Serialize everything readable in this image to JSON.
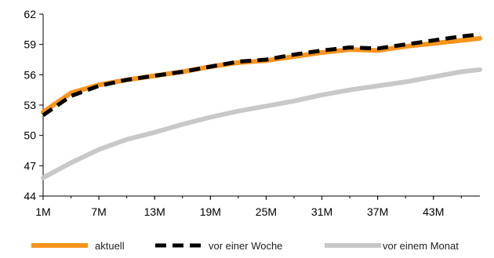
{
  "chart_data": {
    "type": "line",
    "title": "",
    "xlabel": "",
    "ylabel": "",
    "x_ticks": [
      "1M",
      "7M",
      "13M",
      "19M",
      "25M",
      "31M",
      "37M",
      "43M"
    ],
    "x": [
      1,
      4,
      7,
      10,
      13,
      16,
      19,
      22,
      25,
      28,
      31,
      34,
      37,
      40,
      43,
      46,
      48
    ],
    "xlim": [
      1,
      48
    ],
    "y_ticks": [
      44,
      47,
      50,
      53,
      56,
      59,
      62
    ],
    "ylim": [
      44,
      62
    ],
    "grid": false,
    "legend_position": "bottom",
    "series": [
      {
        "name": "aktuell",
        "color": "#f7941d",
        "style": "solid",
        "values": [
          52.3,
          54.2,
          55.0,
          55.5,
          55.9,
          56.3,
          56.8,
          57.2,
          57.4,
          57.8,
          58.2,
          58.5,
          58.4,
          58.8,
          59.1,
          59.4,
          59.6
        ]
      },
      {
        "name": "vor einer Woche",
        "color": "#000000",
        "style": "dashed",
        "values": [
          52.0,
          53.9,
          54.9,
          55.5,
          55.9,
          56.3,
          56.8,
          57.3,
          57.5,
          58.0,
          58.4,
          58.7,
          58.6,
          59.0,
          59.4,
          59.8,
          60.0
        ]
      },
      {
        "name": "vor einem Monat",
        "color": "#c8c8c8",
        "style": "solid",
        "values": [
          45.8,
          47.3,
          48.6,
          49.6,
          50.3,
          51.1,
          51.8,
          52.4,
          52.9,
          53.4,
          54.0,
          54.5,
          54.9,
          55.3,
          55.8,
          56.3,
          56.5
        ]
      }
    ]
  }
}
